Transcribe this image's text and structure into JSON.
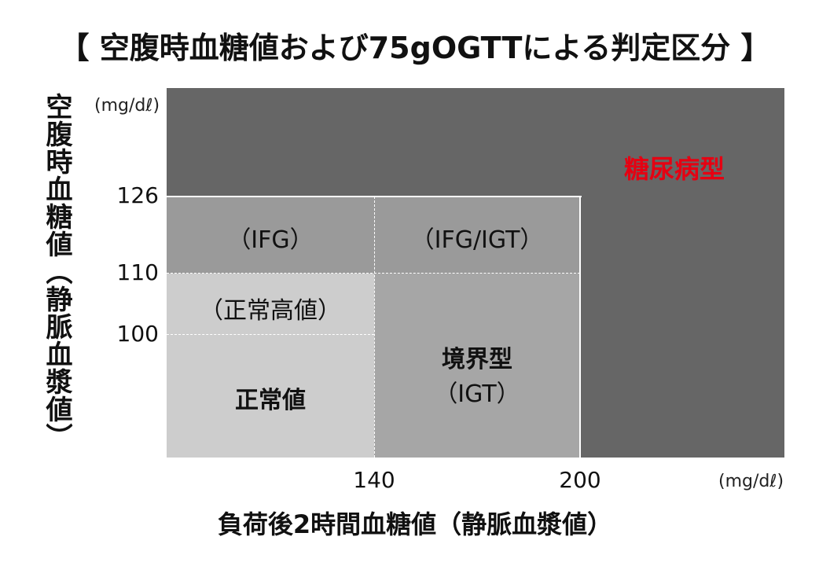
{
  "title": "【 空腹時血糖値および75gOGTTによる判定区分 】",
  "y_axis": {
    "label": "空腹時血糖値（静脈血漿値）",
    "unit": "(mg/dℓ)",
    "ticks": [
      "126",
      "110",
      "100"
    ]
  },
  "x_axis": {
    "label": "負荷後2時間血糖値（静脈血漿値）",
    "unit": "(mg/dℓ)",
    "ticks": [
      "140",
      "200"
    ]
  },
  "regions": {
    "diabetes": "糖尿病型",
    "ifg": "（IFG）",
    "ifg_igt": "（IFG/IGT）",
    "high_normal": "（正常高値）",
    "normal": "正常値",
    "igt_line1": "境界型",
    "igt_line2": "（IGT）"
  },
  "colors": {
    "diabetes_bg": "#666666",
    "ifg_bg": "#9a9a9a",
    "igt_bg": "#a6a6a6",
    "normal_bg": "#cdcdcd",
    "diabetes_text": "#e60012"
  }
}
